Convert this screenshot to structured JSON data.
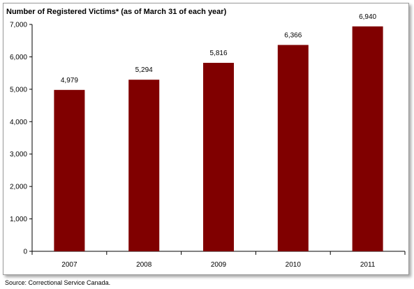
{
  "source_note": "Source:  Correctional Service Canada.",
  "chart_data": {
    "type": "bar",
    "title": "Number of Registered Victims* (as of March 31 of each year)",
    "xlabel": "",
    "ylabel": "",
    "categories": [
      "2007",
      "2008",
      "2009",
      "2010",
      "2011"
    ],
    "values": [
      4979,
      5294,
      5816,
      6366,
      6940
    ],
    "value_labels": [
      "4,979",
      "5,294",
      "5,816",
      "6,366",
      "6,940"
    ],
    "ylim": [
      0,
      7000
    ],
    "yticks": [
      0,
      1000,
      2000,
      3000,
      4000,
      5000,
      6000,
      7000
    ],
    "ytick_labels": [
      "0",
      "1,000",
      "2,000",
      "3,000",
      "4,000",
      "5,000",
      "6,000",
      "7,000"
    ],
    "grid": false,
    "legend": "none",
    "bar_color": "#800000"
  }
}
